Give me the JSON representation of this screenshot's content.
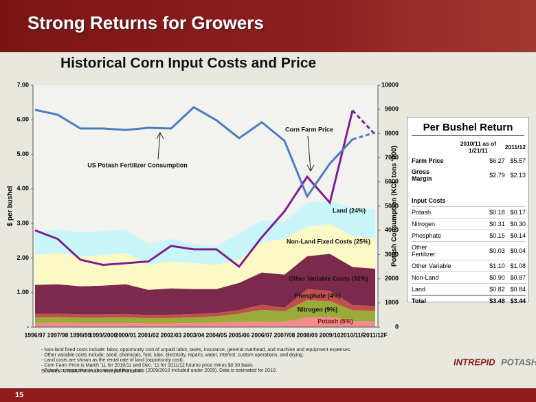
{
  "slide": {
    "title": "Strong Returns for Growers",
    "page_number": "15",
    "logo": [
      "INTREPID",
      "POTASH"
    ],
    "notes": [
      "- Non-land fixed costs include: labor, opportunity cost of unpaid labor, taxes, insurance, general overhead, and machine and equipment expenses.",
      "- Other variable costs include: seed, chemicals, fuel, lube, electricity, repairs, water, interest, custom operations, and drying.",
      "- Land costs are shown as the rental rate of land (opportunity cost).",
      "- Corn Farm Price is March '11 for 2010/11 and Dec. '11 for 2011/12 futures price minus $0.30 basis.",
      "- Potash consumption in shown in fertilizer years (2009/2010 included under 2009). Data is estimated for 2010."
    ],
    "sources": "Sources: USDA, Fertecon, Intrepid Potash®."
  },
  "chart_data": {
    "type": "area",
    "title": "Historical Corn Input Costs and Price",
    "y_label": "$ per bushel",
    "y2_label": "Potash Consumption (KCL tons '000)",
    "categories": [
      "1996/97",
      "1997/98",
      "1998/99",
      "1999/2000",
      "2000/01",
      "2001/02",
      "2002/03",
      "2003/04",
      "2004/05",
      "2005/06",
      "2006/07",
      "2007/08",
      "2008/09",
      "2009/10",
      "2010/11F",
      "2011/12F"
    ],
    "ylim": [
      0,
      7
    ],
    "yticks": [
      {
        "value": 0,
        "label": "-"
      },
      {
        "value": 1,
        "label": "1.00"
      },
      {
        "value": 2,
        "label": "2.00"
      },
      {
        "value": 3,
        "label": "3.00"
      },
      {
        "value": 4,
        "label": "4.00"
      },
      {
        "value": 5,
        "label": "5.00"
      },
      {
        "value": 6,
        "label": "6.00"
      },
      {
        "value": 7,
        "label": "7.00"
      }
    ],
    "y2lim": [
      0,
      10000
    ],
    "y2ticks": [
      0,
      1000,
      2000,
      3000,
      4000,
      5000,
      6000,
      7000,
      8000,
      9000,
      10000
    ],
    "dash_last_segment": true,
    "series": [
      {
        "name": "Potash (5%)",
        "type": "area",
        "color": "#f28c8c",
        "values": [
          0.12,
          0.13,
          0.12,
          0.12,
          0.12,
          0.11,
          0.11,
          0.12,
          0.13,
          0.15,
          0.16,
          0.16,
          0.28,
          0.3,
          0.18,
          0.17
        ]
      },
      {
        "name": "Nitrogen (9%)",
        "type": "area",
        "color": "#9aab3a",
        "values": [
          0.16,
          0.16,
          0.15,
          0.15,
          0.16,
          0.15,
          0.15,
          0.16,
          0.18,
          0.24,
          0.34,
          0.3,
          0.5,
          0.45,
          0.31,
          0.3
        ]
      },
      {
        "name": "Phosphate (4%)",
        "type": "area",
        "color": "#c0504d",
        "values": [
          0.1,
          0.1,
          0.1,
          0.1,
          0.1,
          0.09,
          0.1,
          0.1,
          0.1,
          0.1,
          0.15,
          0.1,
          0.32,
          0.3,
          0.15,
          0.14
        ]
      },
      {
        "name": "Other Variable Costs (32%)",
        "type": "area",
        "color": "#7b2a4b",
        "values": [
          0.84,
          0.85,
          0.81,
          0.83,
          0.86,
          0.73,
          0.76,
          0.72,
          0.69,
          0.79,
          0.93,
          0.96,
          0.95,
          1.07,
          1.1,
          1.08
        ]
      },
      {
        "name": "Non-Land Fixed Costs (25%)",
        "type": "area",
        "color": "#fdf9c4",
        "values": [
          0.88,
          0.91,
          0.87,
          0.88,
          0.91,
          0.72,
          0.78,
          0.75,
          0.7,
          0.67,
          0.87,
          1.03,
          0.85,
          0.86,
          0.9,
          0.87
        ]
      },
      {
        "name": "Land (24%)",
        "type": "area",
        "color": "#c9f7f9",
        "values": [
          0.68,
          0.67,
          0.7,
          0.7,
          0.67,
          0.6,
          0.65,
          0.55,
          0.55,
          0.75,
          0.65,
          0.5,
          0.7,
          0.67,
          0.82,
          0.84
        ]
      },
      {
        "name": "Corn Farm Price",
        "type": "line",
        "color": "#7f1f8f",
        "values": [
          2.8,
          2.55,
          1.95,
          1.8,
          1.85,
          1.9,
          2.35,
          2.25,
          2.25,
          1.75,
          2.6,
          3.35,
          4.35,
          3.6,
          6.27,
          5.57
        ]
      },
      {
        "name": "US Potash Fertilizer Consumption",
        "type": "line",
        "axis": "y2",
        "color": "#4a7ebb",
        "values": [
          8980,
          8780,
          8210,
          8210,
          8150,
          8240,
          8210,
          9090,
          8550,
          7810,
          8470,
          7700,
          5400,
          6760,
          7760,
          8040
        ]
      }
    ]
  },
  "table": {
    "title": "Per Bushel Return",
    "columns": [
      "2010/11 as of 1/21/11",
      "2011/12"
    ],
    "rows": [
      [
        "Farm Price",
        "$6.27",
        "$5.57"
      ],
      [
        "Gross Margin",
        "$2.79",
        "$2.13"
      ]
    ],
    "section": "Input Costs",
    "input_rows": [
      [
        "Potash",
        "$0.18",
        "$0.17"
      ],
      [
        "Nitrogen",
        "$0.31",
        "$0.30"
      ],
      [
        "Phosphate",
        "$0.15",
        "$0.14"
      ],
      [
        "Other Fertilizer",
        "$0.03",
        "$0.04"
      ],
      [
        "Other Variable",
        "$1.10",
        "$1.08"
      ],
      [
        "Non-Land",
        "$0.90",
        "$0.87"
      ],
      [
        "Land",
        "$0.82",
        "$0.84"
      ]
    ],
    "total": [
      "Total",
      "$3.48",
      "$3.44"
    ]
  }
}
